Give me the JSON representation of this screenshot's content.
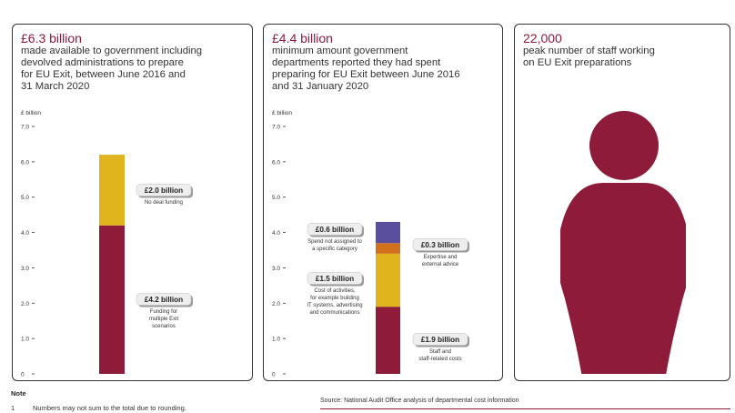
{
  "panels": [
    {
      "headline": "£6.3 billion",
      "description_lines": [
        "made available to government including",
        "devolved administrations to prepare",
        "for EU Exit, between June 2016 and",
        "31 March 2020"
      ]
    },
    {
      "headline": "£4.4 billion",
      "description_lines": [
        "minimum amount government",
        "departments reported they had spent",
        "preparing for EU Exit between June 2016",
        "and 31 January 2020"
      ]
    },
    {
      "headline": "22,000",
      "description_lines": [
        "peak number of staff working",
        "on EU Exit preparations"
      ],
      "icon": "person-icon",
      "icon_color": "#8e1b3a"
    }
  ],
  "chart_data": [
    {
      "type": "bar",
      "stacked": true,
      "ylabel": "£ billion",
      "ylim": [
        0,
        7
      ],
      "yticks": [
        "0",
        "1.0",
        "2.0",
        "3.0",
        "4.0",
        "5.0",
        "6.0",
        "7.0"
      ],
      "segments": [
        {
          "value": 4.2,
          "label": "£4.2 billion",
          "caption_lines": [
            "Funding for",
            "multiple Exit",
            "scenarios"
          ],
          "color": "#8e1b3a"
        },
        {
          "value": 2.0,
          "label": "£2.0 billion",
          "caption_lines": [
            "No deal funding"
          ],
          "color": "#e0b41c"
        }
      ]
    },
    {
      "type": "bar",
      "stacked": true,
      "ylabel": "£ billion",
      "ylim": [
        0,
        7
      ],
      "yticks": [
        "0",
        "1.0",
        "2.0",
        "3.0",
        "4.0",
        "5.0",
        "6.0",
        "7.0"
      ],
      "segments": [
        {
          "value": 1.9,
          "label": "£1.9 billion",
          "caption_lines": [
            "Staff and",
            "staff-related costs"
          ],
          "color": "#8e1b3a"
        },
        {
          "value": 1.5,
          "label": "£1.5 billion",
          "caption_lines": [
            "Cost of activities,",
            "for example building",
            "IT systems, advertising",
            "and communications"
          ],
          "color": "#e0b41c"
        },
        {
          "value": 0.3,
          "label": "£0.3 billion",
          "caption_lines": [
            "Expertise and",
            "external advice"
          ],
          "color": "#d1711e"
        },
        {
          "value": 0.6,
          "label": "£0.6 billion",
          "caption_lines": [
            "Spend not assigned to",
            "a specific category"
          ],
          "color": "#5a4f9c"
        }
      ]
    }
  ],
  "note": {
    "title": "Note",
    "items": [
      {
        "number": "1",
        "text": "Numbers may not sum to the total due to rounding."
      }
    ]
  },
  "source": "Source: National Audit Office analysis of departmental cost information"
}
